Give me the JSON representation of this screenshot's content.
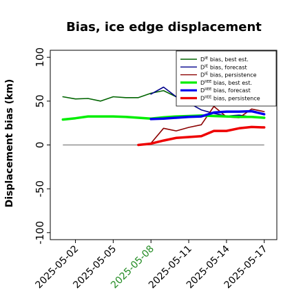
{
  "chart_data": {
    "type": "line",
    "title": "Bias, ice edge displacement",
    "ylabel": "Displacement bias (km)",
    "xlabel": "",
    "ylim": [
      -108,
      108
    ],
    "xlim": [
      "2025-04-30",
      "2025-05-18"
    ],
    "yticks": [
      -100,
      -50,
      0,
      50,
      100
    ],
    "xticks": [
      {
        "date": "2025-05-02",
        "label": "2025-05-02",
        "color": "#000000"
      },
      {
        "date": "2025-05-05",
        "label": "2025-05-05",
        "color": "#000000"
      },
      {
        "date": "2025-05-08",
        "label": "2025-05-08",
        "color": "#228B22"
      },
      {
        "date": "2025-05-11",
        "label": "2025-05-11",
        "color": "#000000"
      },
      {
        "date": "2025-05-14",
        "label": "2025-05-14",
        "color": "#000000"
      },
      {
        "date": "2025-05-17",
        "label": "2025-05-17",
        "color": "#000000"
      }
    ],
    "grid": false,
    "legend_position": "top-right",
    "reference_line": {
      "y": 0,
      "from": "2025-05-01",
      "to": "2025-05-17",
      "color": "#808080"
    },
    "series": [
      {
        "name": "D^IE bias, best est.",
        "sup": "IE",
        "rest": " bias, best est.",
        "color": "#006400",
        "width": 1.6,
        "x": [
          "2025-05-01",
          "2025-05-02",
          "2025-05-03",
          "2025-05-04",
          "2025-05-05",
          "2025-05-06",
          "2025-05-07",
          "2025-05-08",
          "2025-05-09",
          "2025-05-10"
        ],
        "y": [
          55,
          52.5,
          53,
          50,
          55,
          54,
          54,
          59,
          62,
          55
        ]
      },
      {
        "name": "D^IE bias, forecast",
        "sup": "IE",
        "rest": " bias, forecast",
        "color": "#00008B",
        "width": 1.6,
        "x": [
          "2025-05-08",
          "2025-05-09",
          "2025-05-10",
          "2025-05-11",
          "2025-05-12",
          "2025-05-13",
          "2025-05-14",
          "2025-05-15",
          "2025-05-16",
          "2025-05-17"
        ],
        "y": [
          58,
          66,
          55,
          48,
          40,
          36,
          33,
          34,
          32,
          31
        ]
      },
      {
        "name": "D^IE bias, persistence",
        "sup": "IE",
        "rest": " bias, persistence",
        "color": "#8B0000",
        "width": 1.6,
        "x": [
          "2025-05-07",
          "2025-05-08",
          "2025-05-09",
          "2025-05-10",
          "2025-05-11",
          "2025-05-12",
          "2025-05-13",
          "2025-05-14",
          "2025-05-15",
          "2025-05-16",
          "2025-05-17"
        ],
        "y": [
          0,
          2,
          19,
          16,
          20,
          23,
          44,
          32,
          31,
          41,
          38
        ]
      },
      {
        "name": "D^IIEE bias, best est.",
        "sup": "IIEE",
        "rest": " bias, best est.",
        "color": "#00EE00",
        "width": 3.5,
        "x": [
          "2025-05-01",
          "2025-05-02",
          "2025-05-03",
          "2025-05-04",
          "2025-05-05",
          "2025-05-06",
          "2025-05-07",
          "2025-05-08",
          "2025-05-09",
          "2025-05-10",
          "2025-05-11",
          "2025-05-12",
          "2025-05-13",
          "2025-05-14",
          "2025-05-15",
          "2025-05-16",
          "2025-05-17"
        ],
        "y": [
          29,
          30.5,
          32.5,
          32.5,
          32.5,
          32,
          31,
          30,
          31.5,
          32.5,
          33,
          33.5,
          33,
          32.5,
          32,
          32,
          31
        ]
      },
      {
        "name": "D^IIEE bias, forecast",
        "sup": "IIEE",
        "rest": " bias, forecast",
        "color": "#0000EE",
        "width": 3.5,
        "x": [
          "2025-05-08",
          "2025-05-09",
          "2025-05-10",
          "2025-05-11",
          "2025-05-12",
          "2025-05-13",
          "2025-05-14",
          "2025-05-15",
          "2025-05-16",
          "2025-05-17"
        ],
        "y": [
          29.5,
          30,
          31,
          32,
          32.5,
          37,
          38,
          38,
          38.5,
          35
        ]
      },
      {
        "name": "D^IIEE bias, persistence",
        "sup": "IIEE",
        "rest": " bias, persistence",
        "color": "#EE0000",
        "width": 3.5,
        "x": [
          "2025-05-07",
          "2025-05-08",
          "2025-05-09",
          "2025-05-10",
          "2025-05-11",
          "2025-05-12",
          "2025-05-13",
          "2025-05-14",
          "2025-05-15",
          "2025-05-16",
          "2025-05-17"
        ],
        "y": [
          0,
          1.5,
          5,
          8,
          9,
          10,
          16,
          16,
          19,
          20.5,
          20
        ]
      }
    ]
  }
}
